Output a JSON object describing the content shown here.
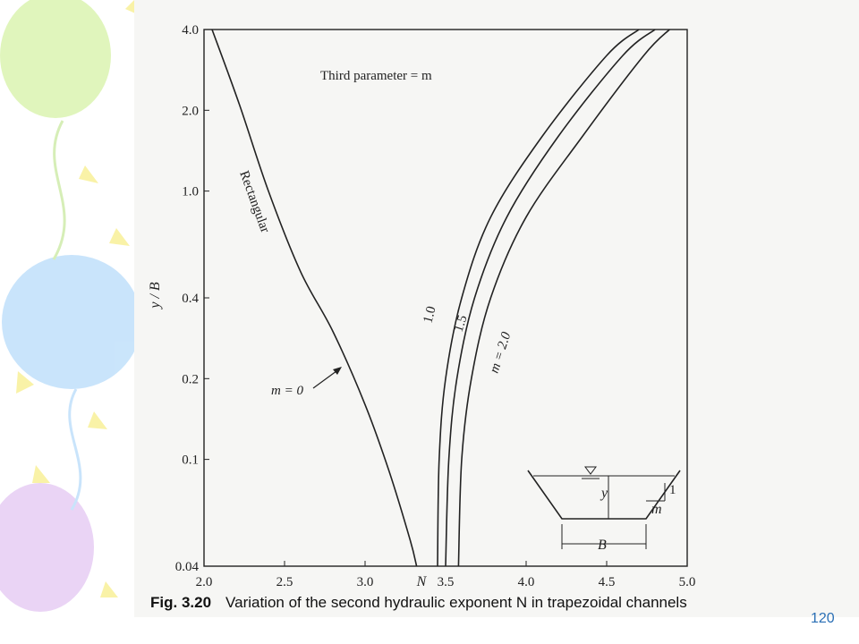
{
  "colors": {
    "balloon_green": "#d6f2a6",
    "balloon_blue": "#b8dcfa",
    "balloon_purple": "#e3c6f2",
    "star_yellow": "#f7ee8a",
    "page_number": "#2a6fb5"
  },
  "caption": {
    "figure": "Fig. 3.20",
    "text": "Variation of the second hydraulic exponent N in trapezoidal channels"
  },
  "page_number": "120",
  "annotations": {
    "third_parameter": "Third parameter = m",
    "rectangular": "Rectangular",
    "m0": "m = 0",
    "m1": "1.0",
    "m15": "1.5",
    "m2": "m = 2.0"
  },
  "inset": {
    "y": "y",
    "B": "B",
    "m": "m",
    "one": "1"
  },
  "chart_data": {
    "type": "line",
    "title": "",
    "xlabel": "N",
    "ylabel": "y / B",
    "xlim": [
      2.0,
      5.0
    ],
    "ylim": [
      0.04,
      4.0
    ],
    "y_scale": "log",
    "grid": false,
    "x_ticks": [
      "2.0",
      "2.5",
      "3.0",
      "3.5",
      "4.0",
      "4.5",
      "5.0"
    ],
    "y_ticks": [
      "4.0",
      "2.0",
      "1.0",
      "0.4",
      "0.2",
      "0.1",
      "0.04"
    ],
    "y_tick_values": [
      4.0,
      2.0,
      1.0,
      0.4,
      0.2,
      0.1,
      0.04
    ],
    "series": [
      {
        "name": "m = 0",
        "x": [
          2.05,
          2.22,
          2.4,
          2.6,
          2.8,
          3.0,
          3.15,
          3.28,
          3.32
        ],
        "y": [
          4.0,
          2.1,
          1.0,
          0.5,
          0.3,
          0.16,
          0.09,
          0.05,
          0.04
        ]
      },
      {
        "name": "1.0",
        "x": [
          3.45,
          3.46,
          3.5,
          3.6,
          3.78,
          4.1,
          4.5,
          4.7
        ],
        "y": [
          0.04,
          0.1,
          0.2,
          0.4,
          0.8,
          1.6,
          3.2,
          4.0
        ]
      },
      {
        "name": "1.5",
        "x": [
          3.5,
          3.52,
          3.57,
          3.68,
          3.88,
          4.2,
          4.6,
          4.8
        ],
        "y": [
          0.04,
          0.1,
          0.2,
          0.4,
          0.8,
          1.6,
          3.2,
          4.0
        ]
      },
      {
        "name": "m = 2.0",
        "x": [
          3.58,
          3.6,
          3.66,
          3.78,
          4.0,
          4.35,
          4.73,
          4.89
        ],
        "y": [
          0.04,
          0.1,
          0.2,
          0.4,
          0.8,
          1.6,
          3.2,
          4.0
        ]
      }
    ]
  }
}
